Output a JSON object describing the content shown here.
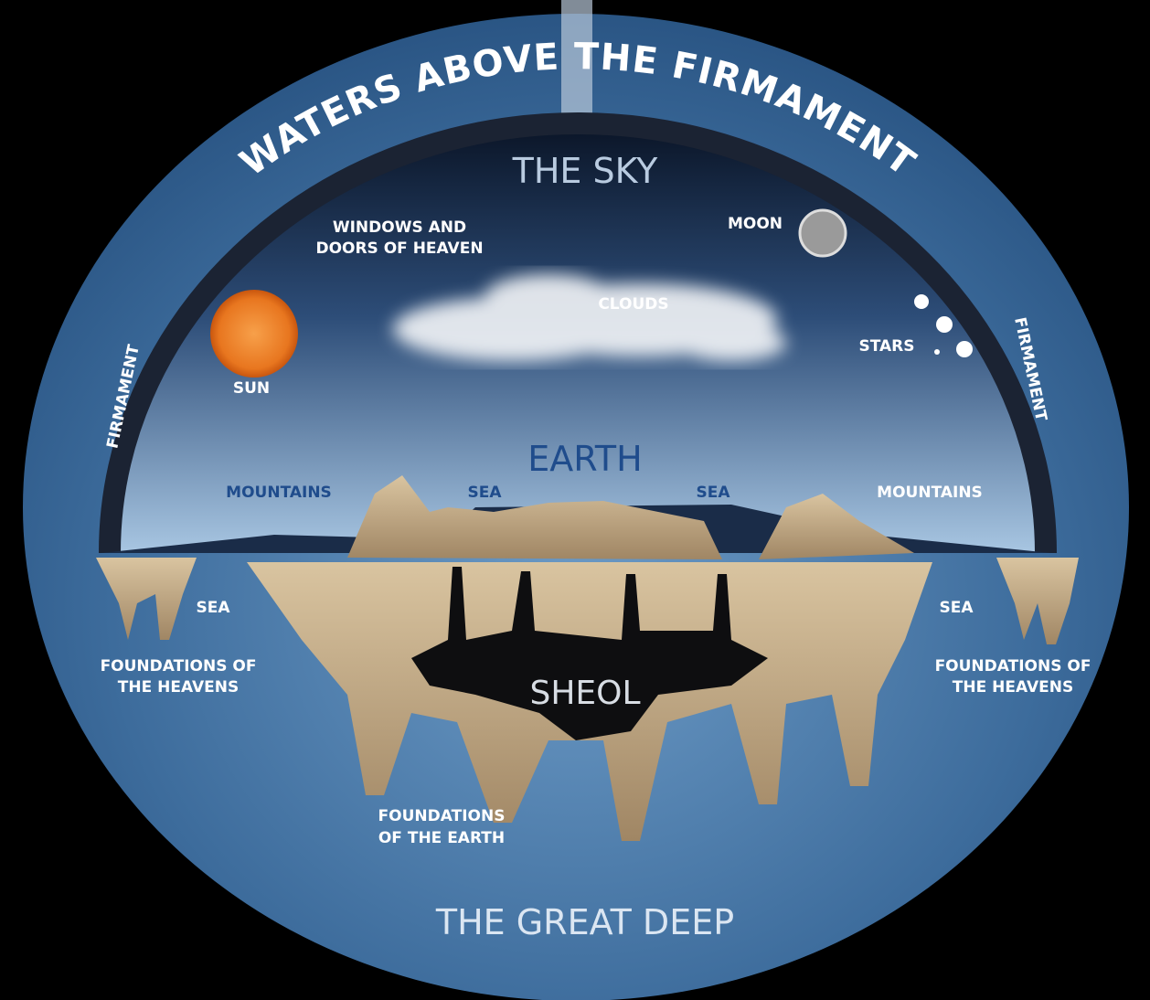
{
  "banner": "WATERS ABOVE THE FIRMAMENT",
  "regions": {
    "sky": "THE SKY",
    "earth": "EARTH",
    "sheol": "SHEOL",
    "deep": "THE GREAT DEEP"
  },
  "labels": {
    "windows": {
      "lines": [
        "WINDOWS AND",
        "DOORS OF HEAVEN"
      ]
    },
    "moon": "MOON",
    "clouds": "CLOUDS",
    "stars": "STARS",
    "sun": "SUN",
    "firmament_left": "FIRMAMENT",
    "firmament_right": "FIRMAMENT",
    "mountains_left": "MOUNTAINS",
    "sea_inner_left": "SEA",
    "sea_inner_right": "SEA",
    "mountains_right": "MOUNTAINS",
    "sea_outer_left": "SEA",
    "sea_outer_right": "SEA",
    "foundations_heavens_left": {
      "lines": [
        "FOUNDATIONS OF",
        "THE HEAVENS"
      ]
    },
    "foundations_heavens_right": {
      "lines": [
        "FOUNDATIONS OF",
        "THE HEAVENS"
      ]
    },
    "foundations_earth": {
      "lines": [
        "FOUNDATIONS",
        "OF THE EARTH"
      ]
    }
  }
}
